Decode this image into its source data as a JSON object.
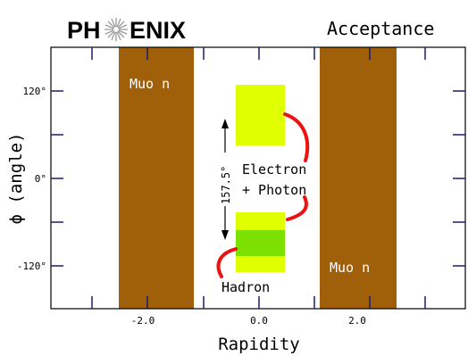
{
  "logo": {
    "text_left": "PH",
    "text_right": "ENIX",
    "icon": "starburst-icon"
  },
  "title": "Acceptance",
  "axes": {
    "xlabel": "Rapidity",
    "ylabel": "ϕ  (angle)",
    "xticks": [
      "-2.0",
      "0.0",
      "2.0"
    ],
    "yticks": [
      "120°",
      "0°",
      "-120°"
    ]
  },
  "regions": {
    "muon_left_label": "Muo n",
    "muon_right_label": "Muo n",
    "electron_label_1": "Electron",
    "electron_label_2": "+ Photon",
    "hadron_label": "Hadron",
    "gap_label": "157.5°"
  },
  "colors": {
    "muon": "#a0600a",
    "central_light": "#e0ff00",
    "central_dark": "#7ce000",
    "arrow_red": "#ee1111",
    "frame": "#000000",
    "tick_blue": "#1a1a6e"
  }
}
